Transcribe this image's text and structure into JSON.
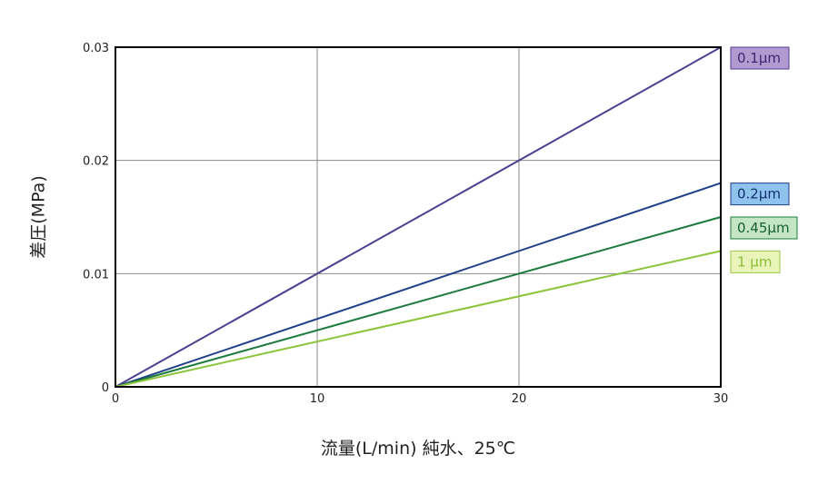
{
  "chart_data": {
    "type": "line",
    "xlabel": "流量(L/min) 純水、25℃",
    "ylabel": "差圧(MPa)",
    "xlim": [
      0,
      30
    ],
    "ylim": [
      0,
      0.03
    ],
    "x_ticks": [
      0,
      10,
      20,
      30
    ],
    "x_tick_labels": [
      "0",
      "10",
      "20",
      "30"
    ],
    "y_ticks": [
      0,
      0.01,
      0.02,
      0.03
    ],
    "y_tick_labels": [
      "0",
      "0.01",
      "0.02",
      "0.03"
    ],
    "grid": true,
    "legend": "right",
    "series": [
      {
        "name": "0.1μm",
        "x": [
          0,
          30
        ],
        "y": [
          0,
          0.03
        ],
        "color": "#4b3f8f",
        "legend_bg": "#b09ad0",
        "legend_border": "#4b3f8f",
        "legend_text": "#3b2a73"
      },
      {
        "name": "0.2μm",
        "x": [
          0,
          30
        ],
        "y": [
          0,
          0.018
        ],
        "color": "#1f3f8a",
        "legend_bg": "#8fc2ec",
        "legend_border": "#1f3f8a",
        "legend_text": "#123072"
      },
      {
        "name": "0.45μm",
        "x": [
          0,
          30
        ],
        "y": [
          0,
          0.015
        ],
        "color": "#1c7a3c",
        "legend_bg": "#c4e6c4",
        "legend_border": "#1c7a3c",
        "legend_text": "#17612f"
      },
      {
        "name": "1 μm",
        "x": [
          0,
          30
        ],
        "y": [
          0,
          0.012
        ],
        "color": "#8cc43a",
        "legend_bg": "#e9f4b8",
        "legend_border": "#9bc84a",
        "legend_text": "#8cbc3a"
      }
    ]
  }
}
